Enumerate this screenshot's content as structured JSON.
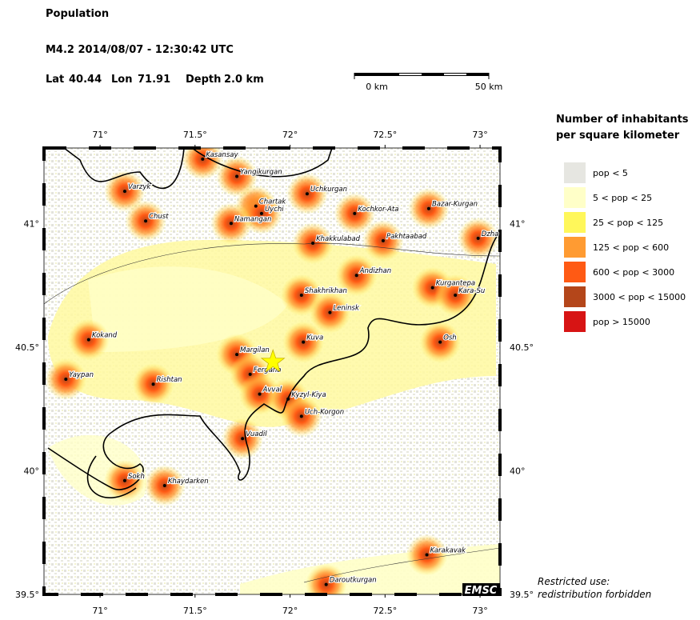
{
  "header": {
    "title": "Population",
    "event": "M4.2  2014/08/07 - 12:30:42 UTC"
  },
  "epicenter": {
    "lat_label": "Lat",
    "lat": 40.44,
    "lon_label": "Lon",
    "lon": 71.91,
    "depth_label": "Depth",
    "depth": "2.0 km"
  },
  "scale_bar": {
    "start": "0 km",
    "end": "50 km"
  },
  "map": {
    "xlim": [
      70.705,
      73.105
    ],
    "ylim": [
      39.5,
      41.305
    ],
    "xticks": [
      {
        "value": 71,
        "label": "71°"
      },
      {
        "value": 71.5,
        "label": "71.5°"
      },
      {
        "value": 72,
        "label": "72°"
      },
      {
        "value": 72.5,
        "label": "72.5°"
      },
      {
        "value": 73,
        "label": "73°"
      }
    ],
    "yticks": [
      {
        "value": 39.5,
        "label": "39.5°"
      },
      {
        "value": 40,
        "label": "40°"
      },
      {
        "value": 40.5,
        "label": "40.5°"
      },
      {
        "value": 41,
        "label": "41°"
      }
    ],
    "cities": [
      {
        "name": "Kasansay",
        "lon": 71.54,
        "lat": 41.26
      },
      {
        "name": "Varzyk",
        "lon": 71.13,
        "lat": 41.13
      },
      {
        "name": "Yangikurgan",
        "lon": 71.72,
        "lat": 41.19
      },
      {
        "name": "Chartak",
        "lon": 71.82,
        "lat": 41.07
      },
      {
        "name": "Uychi",
        "lon": 71.85,
        "lat": 41.04
      },
      {
        "name": "Uchkurgan",
        "lon": 72.09,
        "lat": 41.12
      },
      {
        "name": "Chust",
        "lon": 71.24,
        "lat": 41.01
      },
      {
        "name": "Namangan",
        "lon": 71.69,
        "lat": 41.0
      },
      {
        "name": "Kochkor-Ata",
        "lon": 72.34,
        "lat": 41.04
      },
      {
        "name": "Bazar-Kurgan",
        "lon": 72.73,
        "lat": 41.06
      },
      {
        "name": "Dzha",
        "lon": 72.99,
        "lat": 40.94
      },
      {
        "name": "Khakkulabad",
        "lon": 72.12,
        "lat": 40.92
      },
      {
        "name": "Pakhtaabad",
        "lon": 72.49,
        "lat": 40.93
      },
      {
        "name": "Andizhan",
        "lon": 72.35,
        "lat": 40.79
      },
      {
        "name": "Shakhrikhan",
        "lon": 72.06,
        "lat": 40.71
      },
      {
        "name": "Kurgantepa",
        "lon": 72.75,
        "lat": 40.74
      },
      {
        "name": "Kara-Su",
        "lon": 72.87,
        "lat": 40.71
      },
      {
        "name": "Leninsk",
        "lon": 72.21,
        "lat": 40.64
      },
      {
        "name": "Kokand",
        "lon": 70.94,
        "lat": 40.53
      },
      {
        "name": "Kuva",
        "lon": 72.07,
        "lat": 40.52
      },
      {
        "name": "Osh",
        "lon": 72.79,
        "lat": 40.52
      },
      {
        "name": "Margilan",
        "lon": 71.72,
        "lat": 40.47
      },
      {
        "name": "Fergana",
        "lon": 71.79,
        "lat": 40.39
      },
      {
        "name": "Yaypan",
        "lon": 70.82,
        "lat": 40.37
      },
      {
        "name": "Rishtan",
        "lon": 71.28,
        "lat": 40.35
      },
      {
        "name": "Avval",
        "lon": 71.84,
        "lat": 40.31
      },
      {
        "name": "Kyzyl-Kiya",
        "lon": 71.99,
        "lat": 40.29
      },
      {
        "name": "Uch-Korgon",
        "lon": 72.06,
        "lat": 40.22
      },
      {
        "name": "Vuadil",
        "lon": 71.75,
        "lat": 40.13
      },
      {
        "name": "Sokh",
        "lon": 71.13,
        "lat": 39.96
      },
      {
        "name": "Khaydarken",
        "lon": 71.34,
        "lat": 39.94
      },
      {
        "name": "Karakavak",
        "lon": 72.72,
        "lat": 39.66
      },
      {
        "name": "Daroutkurgan",
        "lon": 72.19,
        "lat": 39.54
      }
    ]
  },
  "legend": {
    "title": [
      "Number of inhabitants",
      "per square kilometer"
    ],
    "items": [
      {
        "label": "pop < 5",
        "color": "#e6e6e1"
      },
      {
        "label": "5 < pop < 25",
        "color": "#ffffc8"
      },
      {
        "label": "25 < pop < 125",
        "color": "#fff75a"
      },
      {
        "label": "125 < pop < 600",
        "color": "#ff9b32"
      },
      {
        "label": "600 < pop < 3000",
        "color": "#ff5a14"
      },
      {
        "label": "3000 < pop < 15000",
        "color": "#b4461a"
      },
      {
        "label": "pop > 15000",
        "color": "#d71414"
      }
    ]
  },
  "logo": "EMSC",
  "notice": [
    "Restricted use:",
    "redistribution forbidden"
  ]
}
